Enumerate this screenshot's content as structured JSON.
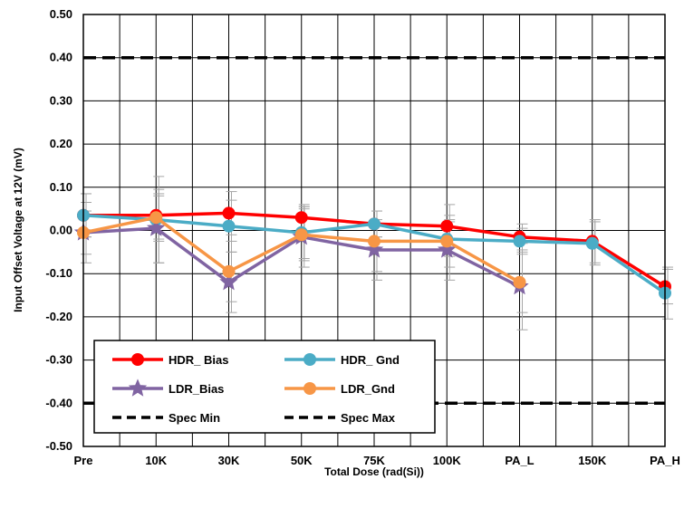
{
  "chart_data": {
    "type": "line",
    "title": "",
    "xlabel": "Total Dose (rad(Si))",
    "ylabel": "Input Offset Voltage at 12V  (mV)",
    "categories": [
      "Pre",
      "10K",
      "30K",
      "50K",
      "75K",
      "100K",
      "PA_L",
      "150K",
      "PA_H"
    ],
    "yticks": [
      "0.50",
      "0.40",
      "0.30",
      "0.20",
      "0.10",
      "0.00",
      "-0.10",
      "-0.20",
      "-0.30",
      "-0.40",
      "-0.50"
    ],
    "ylim": [
      -0.5,
      0.5
    ],
    "grid": true,
    "legend_position": "bottom-left",
    "series": [
      {
        "name": "HDR_ Bias",
        "color": "#ff0000",
        "marker": "circle",
        "values": [
          0.035,
          0.035,
          0.04,
          0.03,
          0.015,
          0.01,
          -0.015,
          -0.025,
          -0.13
        ],
        "errors": [
          0.05,
          0.06,
          0.05,
          0.03,
          0.03,
          0.05,
          0.03,
          0.05,
          0.04
        ]
      },
      {
        "name": "HDR_ Gnd",
        "color": "#4bacc6",
        "marker": "circle",
        "values": [
          0.035,
          0.025,
          0.01,
          -0.005,
          0.015,
          -0.02,
          -0.025,
          -0.03,
          -0.145
        ],
        "errors": [
          0.05,
          0.1,
          0.06,
          0.06,
          0.03,
          0.04,
          0.03,
          0.05,
          0.06
        ]
      },
      {
        "name": "LDR_Bias",
        "color": "#8064a2",
        "marker": "star",
        "values": [
          -0.005,
          0.005,
          -0.12,
          -0.015,
          -0.045,
          -0.045,
          -0.13,
          null,
          null
        ],
        "errors": [
          0.07,
          0.08,
          0.07,
          0.07,
          0.07,
          0.07,
          0.1,
          null,
          null
        ]
      },
      {
        "name": "LDR_Gnd",
        "color": "#f79646",
        "marker": "circle",
        "values": [
          -0.005,
          0.03,
          -0.095,
          -0.01,
          -0.025,
          -0.025,
          -0.12,
          null,
          null
        ],
        "errors": [
          0.05,
          0.05,
          0.07,
          0.06,
          0.07,
          0.06,
          0.07,
          null,
          null
        ]
      },
      {
        "name": "Spec Min",
        "color": "#000000",
        "dashed": true,
        "values": [
          -0.4,
          -0.4,
          -0.4,
          -0.4,
          -0.4,
          -0.4,
          -0.4,
          -0.4,
          -0.4
        ]
      },
      {
        "name": "Spec Max",
        "color": "#000000",
        "dashed": true,
        "values": [
          0.4,
          0.4,
          0.4,
          0.4,
          0.4,
          0.4,
          0.4,
          0.4,
          0.4
        ]
      }
    ],
    "legend": [
      [
        "HDR_ Bias",
        "HDR_ Gnd"
      ],
      [
        "LDR_Bias",
        "LDR_Gnd"
      ],
      [
        "Spec Min",
        "Spec Max"
      ]
    ]
  }
}
